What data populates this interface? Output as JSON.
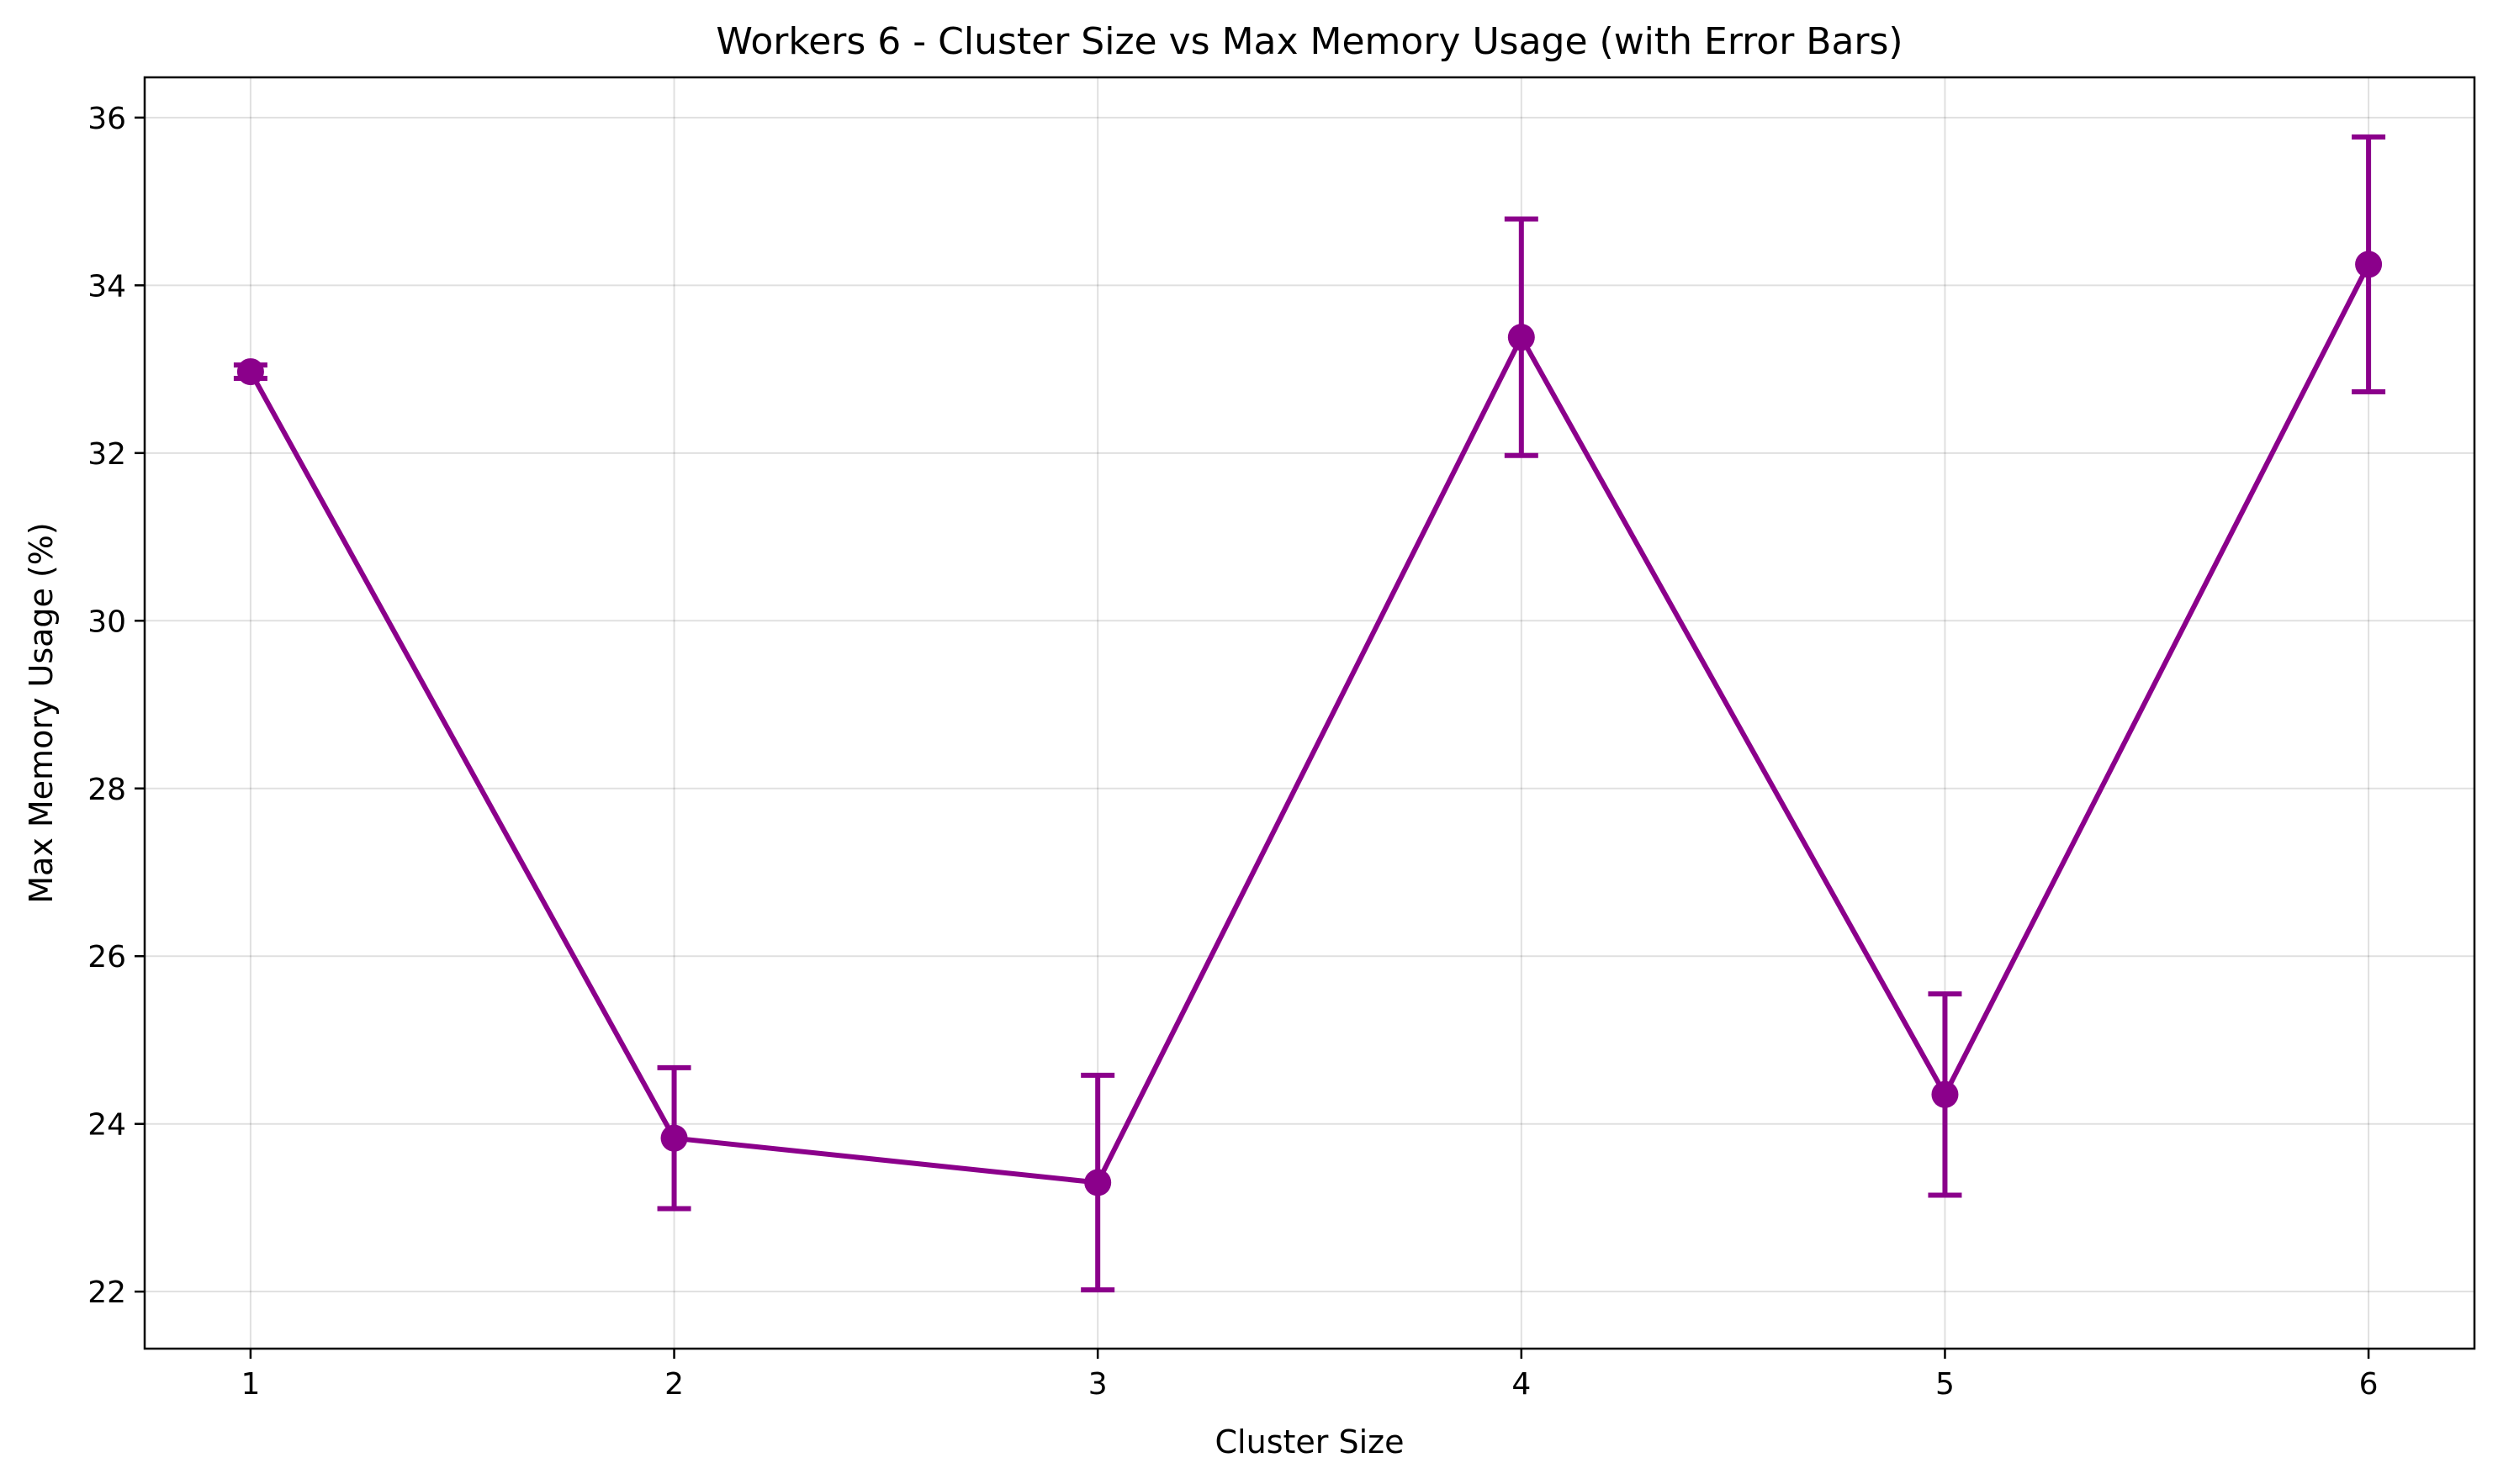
{
  "chart_data": {
    "type": "line",
    "title": "Workers 6 - Cluster Size vs Max Memory Usage (with Error Bars)",
    "xlabel": "Cluster Size",
    "ylabel": "Max Memory Usage (%)",
    "x": [
      1,
      2,
      3,
      4,
      5,
      6
    ],
    "series": [
      {
        "values": [
          32.97,
          23.83,
          23.3,
          33.38,
          24.35,
          34.25
        ],
        "error": [
          0.08,
          0.84,
          1.28,
          1.41,
          1.2,
          1.52
        ],
        "color": "#8B008B"
      }
    ],
    "xticks": [
      "1",
      "2",
      "3",
      "4",
      "5",
      "6"
    ],
    "yticks": [
      "22",
      "24",
      "26",
      "28",
      "30",
      "32",
      "34",
      "36"
    ],
    "xlim": [
      0.75,
      6.25
    ],
    "ylim": [
      21.32,
      36.48
    ],
    "grid": true,
    "legend": "none"
  }
}
